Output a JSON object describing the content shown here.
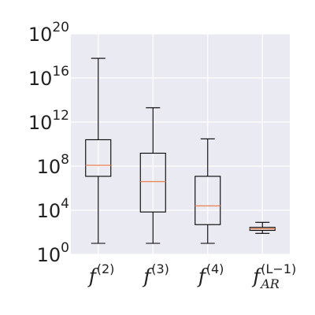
{
  "chart_data": {
    "type": "box",
    "title": "",
    "xlabel": "",
    "ylabel": "",
    "yscale": "log",
    "ylim": [
      1,
      1e+20
    ],
    "grid": true,
    "y_ticks": [
      {
        "value": 1,
        "base": "10",
        "exp": "0"
      },
      {
        "value": 10000.0,
        "base": "10",
        "exp": "4"
      },
      {
        "value": 100000000.0,
        "base": "10",
        "exp": "8"
      },
      {
        "value": 1000000000000.0,
        "base": "10",
        "exp": "12"
      },
      {
        "value": 1e+16,
        "base": "10",
        "exp": "16"
      },
      {
        "value": 1e+20,
        "base": "10",
        "exp": "20"
      }
    ],
    "categories": [
      {
        "base": "f",
        "sup": "(2)",
        "sub": ""
      },
      {
        "base": "f",
        "sup": "(3)",
        "sub": ""
      },
      {
        "base": "f",
        "sup": "(4)",
        "sub": ""
      },
      {
        "base": "f",
        "sup": "(L−1)",
        "sub": "AR"
      }
    ],
    "boxes": [
      {
        "whisker_low": 10,
        "q1": 12000000.0,
        "median": 120000000.0,
        "q3": 25000000000.0,
        "whisker_high": 6e+17
      },
      {
        "whisker_low": 10,
        "q1": 7000.0,
        "median": 4000000.0,
        "q3": 1500000000.0,
        "whisker_high": 20000000000000.0
      },
      {
        "whisker_low": 10,
        "q1": 500.0,
        "median": 25000.0,
        "q3": 12000000.0,
        "whisker_high": 30000000000.0
      },
      {
        "whisker_low": 80,
        "q1": 150,
        "median": 210,
        "q3": 280,
        "whisker_high": 800
      }
    ],
    "colors": {
      "plot_background": "#eaeaf2",
      "grid": "#ffffff",
      "box_edge": "#000000",
      "median": "#e8875a"
    }
  }
}
